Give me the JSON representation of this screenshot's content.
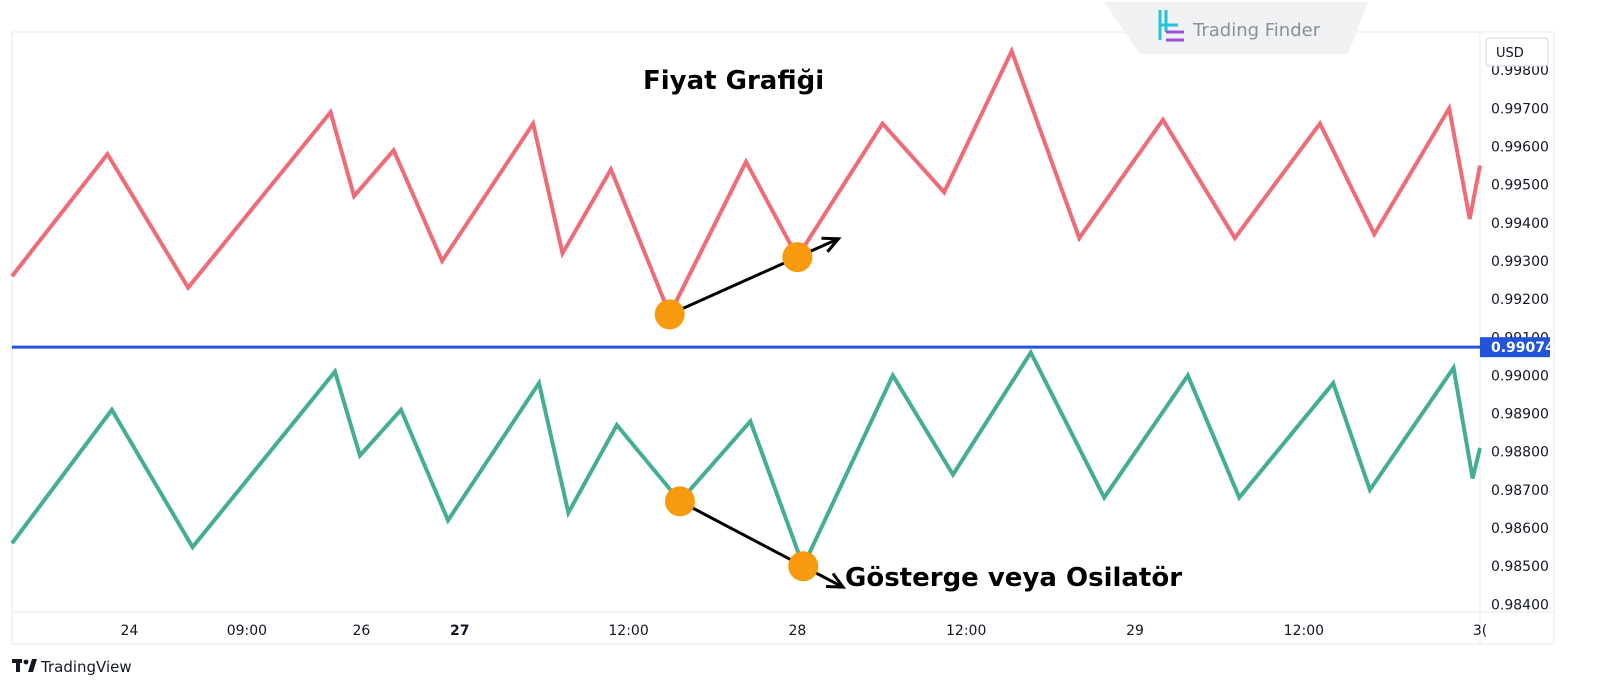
{
  "branding": {
    "watermark": "Trading Finder",
    "footer": "TradingView"
  },
  "colors": {
    "price_line": "#EE6B78",
    "oscillator_line": "#45AD94",
    "level_line": "#2154D9",
    "marker": "#F89A0D",
    "arrow": "#000000"
  },
  "chart_data": {
    "type": "line",
    "ylabel": "USD",
    "ylim": [
      0.9838,
      0.999
    ],
    "y_ticks": [
      "0.99800",
      "0.99700",
      "0.99600",
      "0.99500",
      "0.99400",
      "0.99300",
      "0.99200",
      "0.99100",
      "0.99000",
      "0.98900",
      "0.98800",
      "0.98700",
      "0.98600",
      "0.98500",
      "0.98400"
    ],
    "y_tick_values": [
      0.998,
      0.997,
      0.996,
      0.995,
      0.994,
      0.993,
      0.992,
      0.991,
      0.99,
      0.989,
      0.988,
      0.987,
      0.986,
      0.985,
      0.984
    ],
    "x_ticks": [
      {
        "label": "24",
        "x": 0.08,
        "bold": false
      },
      {
        "label": "09:00",
        "x": 0.16,
        "bold": false
      },
      {
        "label": "26",
        "x": 0.238,
        "bold": false
      },
      {
        "label": "27",
        "x": 0.305,
        "bold": true
      },
      {
        "label": "12:00",
        "x": 0.42,
        "bold": false
      },
      {
        "label": "28",
        "x": 0.535,
        "bold": false
      },
      {
        "label": "12:00",
        "x": 0.65,
        "bold": false
      },
      {
        "label": "29",
        "x": 0.765,
        "bold": false
      },
      {
        "label": "12:00",
        "x": 0.88,
        "bold": false
      },
      {
        "label": "3(",
        "x": 1.0,
        "bold": false
      }
    ],
    "horizontal_level": {
      "value": 0.99074,
      "label": "0.99074"
    },
    "series": [
      {
        "name": "Fiyat Grafiği",
        "x": [
          0,
          0.065,
          0.12,
          0.217,
          0.233,
          0.26,
          0.293,
          0.355,
          0.375,
          0.408,
          0.448,
          0.5,
          0.535,
          0.593,
          0.635,
          0.681,
          0.727,
          0.784,
          0.833,
          0.891,
          0.928,
          0.979,
          0.993,
          1.0
        ],
        "values": [
          0.9926,
          0.9958,
          0.9923,
          0.9969,
          0.9947,
          0.9959,
          0.993,
          0.9966,
          0.9932,
          0.9954,
          0.9916,
          0.9956,
          0.9931,
          0.9966,
          0.9948,
          0.9985,
          0.9936,
          0.9967,
          0.9936,
          0.9966,
          0.9937,
          0.997,
          0.9941,
          0.9955
        ]
      },
      {
        "name": "Gösterge veya Osilatör",
        "x": [
          0,
          0.068,
          0.123,
          0.22,
          0.237,
          0.265,
          0.297,
          0.359,
          0.379,
          0.412,
          0.455,
          0.503,
          0.539,
          0.6,
          0.641,
          0.694,
          0.744,
          0.801,
          0.836,
          0.9,
          0.925,
          0.982,
          0.995,
          1.0
        ],
        "values": [
          0.9856,
          0.9891,
          0.9855,
          0.9901,
          0.9879,
          0.9891,
          0.9862,
          0.9898,
          0.9864,
          0.9887,
          0.9867,
          0.9888,
          0.985,
          0.99,
          0.9874,
          0.9906,
          0.9868,
          0.99,
          0.9868,
          0.9898,
          0.987,
          0.9902,
          0.9873,
          0.9881
        ]
      }
    ],
    "annotations": [
      {
        "series": 0,
        "from": 10,
        "to": 12,
        "text": "Fiyat Grafiği"
      },
      {
        "series": 1,
        "from": 10,
        "to": 12,
        "text": "Gösterge veya Osilatör"
      }
    ]
  }
}
